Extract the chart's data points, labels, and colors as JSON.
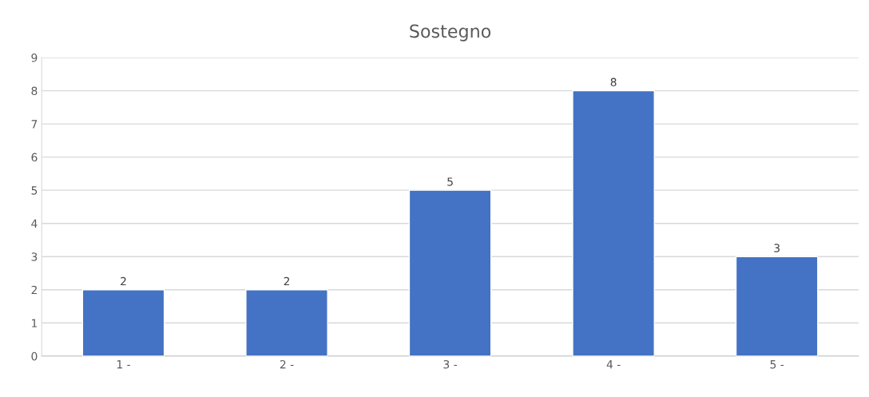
{
  "chart_data": {
    "type": "bar",
    "title": "Sostegno",
    "categories": [
      "1 -",
      "2 -",
      "3 -",
      "4 -",
      "5 -"
    ],
    "values": [
      2,
      2,
      5,
      8,
      3
    ],
    "color": "#4472c4",
    "ylim": [
      0,
      9
    ],
    "yticks": [
      0,
      1,
      2,
      3,
      4,
      5,
      6,
      7,
      8,
      9
    ],
    "grid": "y",
    "data_labels": true
  }
}
